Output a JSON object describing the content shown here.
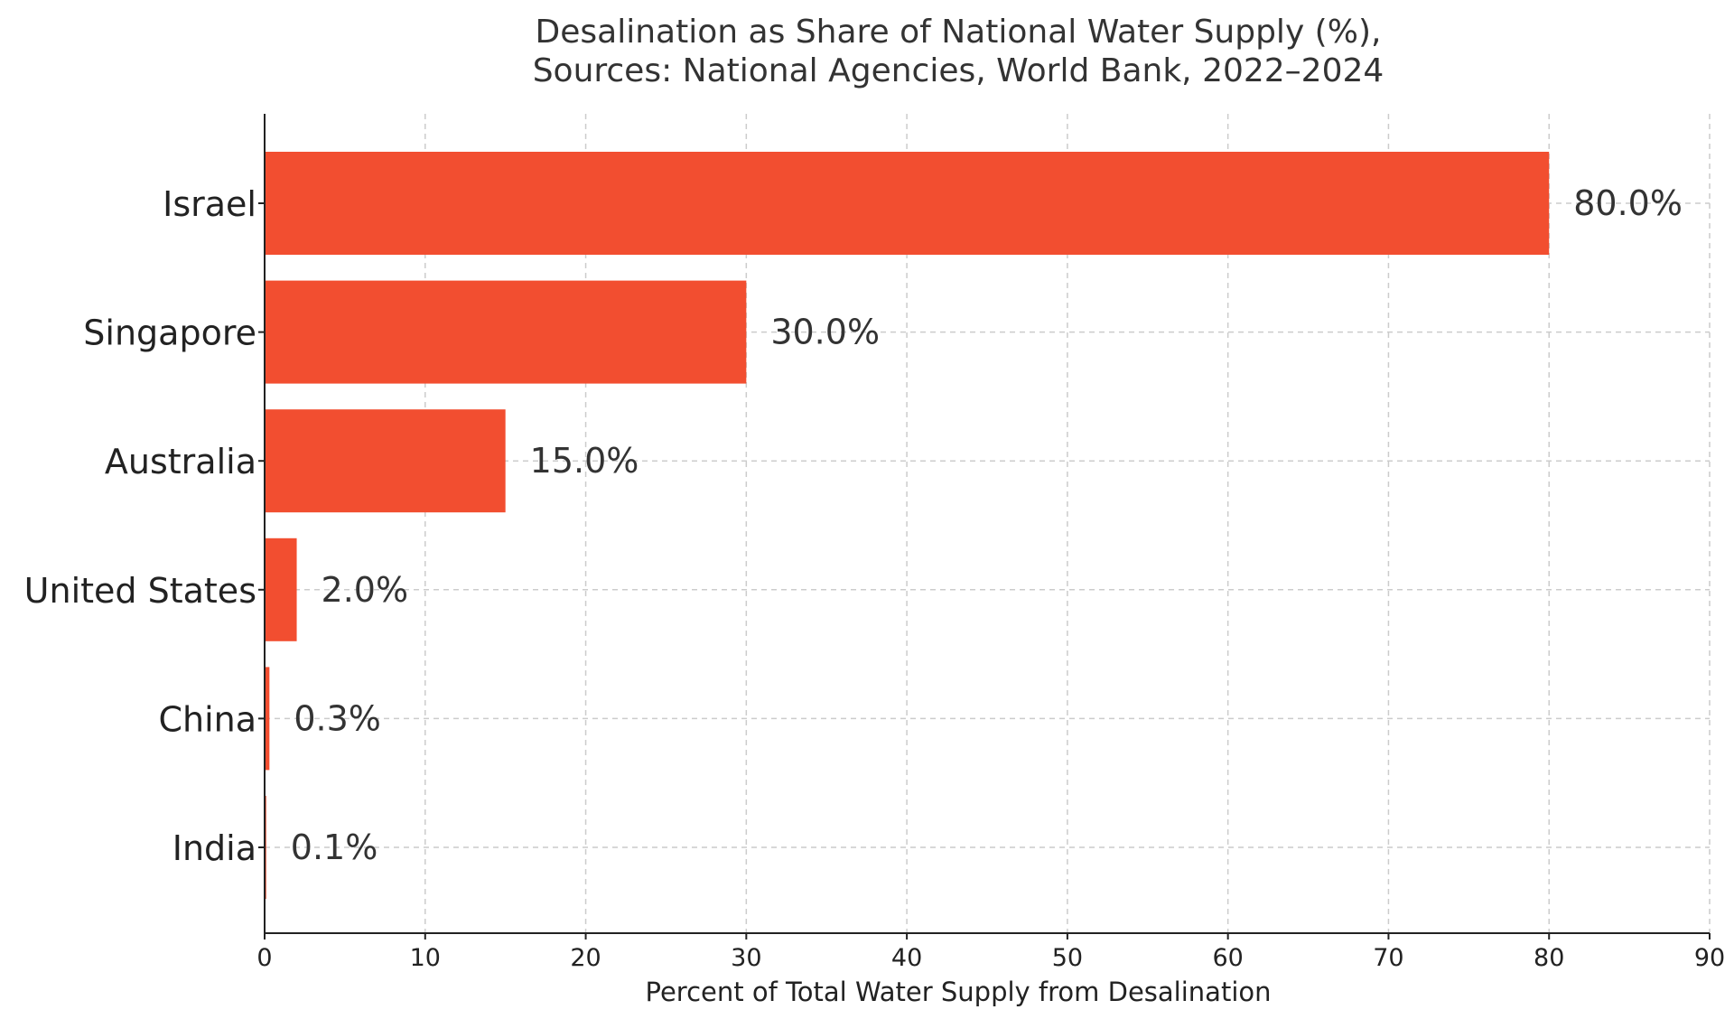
{
  "chart_data": {
    "type": "bar",
    "orientation": "horizontal",
    "title_lines": [
      "Desalination as Share of National Water Supply (%),",
      "Sources: National Agencies, World Bank, 2022–2024"
    ],
    "categories": [
      "Israel",
      "Singapore",
      "Australia",
      "United States",
      "China",
      "India"
    ],
    "values": [
      80.0,
      30.0,
      15.0,
      2.0,
      0.3,
      0.1
    ],
    "value_labels": [
      "80.0%",
      "30.0%",
      "15.0%",
      "2.0%",
      "0.3%",
      "0.1%"
    ],
    "xlabel": "Percent of Total Water Supply from Desalination",
    "ylabel": "",
    "xlim": [
      0,
      90
    ],
    "xticks": [
      0,
      10,
      20,
      30,
      40,
      50,
      60,
      70,
      80,
      90
    ],
    "xtick_labels": [
      "0",
      "10",
      "20",
      "30",
      "40",
      "50",
      "60",
      "70",
      "80",
      "90"
    ],
    "grid": true,
    "bar_color": "#f24e30"
  }
}
